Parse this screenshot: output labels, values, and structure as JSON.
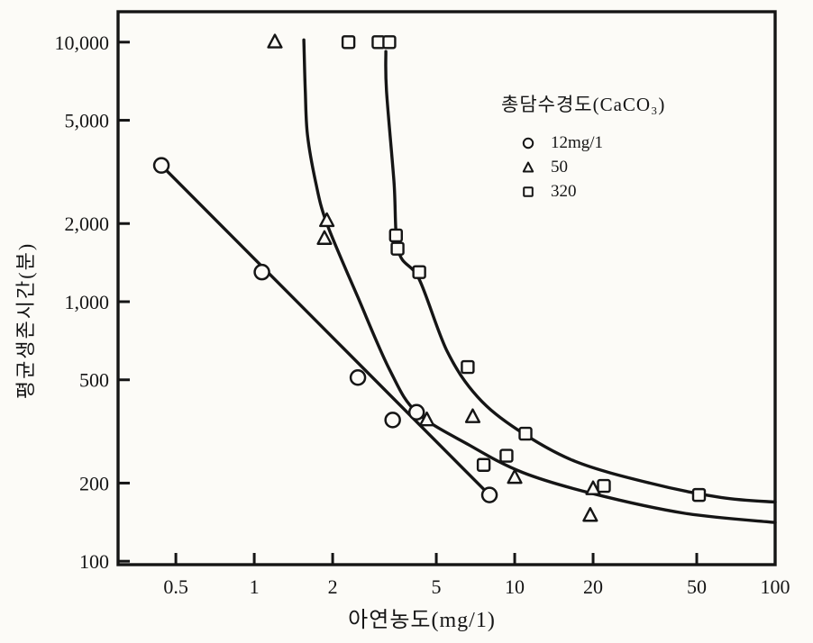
{
  "figure": {
    "paper_color": "#fcfbf7",
    "ink_color": "#151515"
  },
  "chart_data": {
    "type": "scatter",
    "title": "",
    "xlabel": "아연농도(mg/1)",
    "ylabel": "평균생존시간(분)",
    "x_scale": "log",
    "y_scale": "log",
    "xlim": [
      0.3,
      100
    ],
    "ylim": [
      97,
      13100
    ],
    "grid": false,
    "x_ticks": [
      0.5,
      1,
      2,
      5,
      10,
      20,
      50,
      100
    ],
    "x_tick_labels": [
      "0.5",
      "1",
      "2",
      "5",
      "10",
      "20",
      "50",
      "100"
    ],
    "y_ticks": [
      100,
      200,
      500,
      1000,
      2000,
      5000,
      10000
    ],
    "y_tick_labels": [
      "100",
      "200",
      "500",
      "1,000",
      "2,000",
      "5,000",
      "10,000"
    ],
    "legend": {
      "title": "총담수경도(CaCO₃)",
      "position": "upper-right-inside",
      "items": [
        {
          "marker": "circle",
          "label": "12mg/1"
        },
        {
          "marker": "triangle",
          "label": "50"
        },
        {
          "marker": "square",
          "label": "320"
        }
      ]
    },
    "series": [
      {
        "name": "12mg/1",
        "marker": "circle",
        "points": [
          [
            0.44,
            3350
          ],
          [
            1.07,
            1300
          ],
          [
            2.5,
            510
          ],
          [
            3.4,
            350
          ],
          [
            4.2,
            375
          ],
          [
            8.0,
            180
          ]
        ],
        "curve": [
          [
            0.44,
            3350
          ],
          [
            8.0,
            180
          ]
        ]
      },
      {
        "name": "50",
        "marker": "triangle",
        "points": [
          [
            1.2,
            10000
          ],
          [
            1.9,
            2050
          ],
          [
            1.86,
            1750
          ],
          [
            4.6,
            350
          ],
          [
            6.9,
            360
          ],
          [
            10,
            210
          ],
          [
            20,
            190
          ],
          [
            19.5,
            150
          ]
        ],
        "curve": [
          [
            1.55,
            10200
          ],
          [
            1.57,
            6500
          ],
          [
            1.6,
            4400
          ],
          [
            1.72,
            2900
          ],
          [
            1.9,
            2000
          ],
          [
            2.5,
            1040
          ],
          [
            3.3,
            550
          ],
          [
            4.2,
            375
          ],
          [
            6.7,
            280
          ],
          [
            10.7,
            220
          ],
          [
            20,
            182
          ],
          [
            45,
            153
          ],
          [
            100,
            141
          ]
        ]
      },
      {
        "name": "320",
        "marker": "square",
        "points": [
          [
            2.3,
            10000
          ],
          [
            3.0,
            10000
          ],
          [
            3.3,
            10000
          ],
          [
            3.5,
            1800
          ],
          [
            3.55,
            1600
          ],
          [
            4.3,
            1300
          ],
          [
            6.6,
            560
          ],
          [
            7.6,
            235
          ],
          [
            9.3,
            255
          ],
          [
            11,
            310
          ],
          [
            22,
            195
          ],
          [
            51,
            180
          ]
        ],
        "curve": [
          [
            3.2,
            9200
          ],
          [
            3.22,
            6500
          ],
          [
            3.44,
            2900
          ],
          [
            3.58,
            1570
          ],
          [
            4.3,
            1220
          ],
          [
            5.5,
            645
          ],
          [
            7.2,
            430
          ],
          [
            10.3,
            320
          ],
          [
            17,
            243
          ],
          [
            33,
            200
          ],
          [
            62,
            176
          ],
          [
            100,
            169
          ]
        ]
      }
    ]
  }
}
